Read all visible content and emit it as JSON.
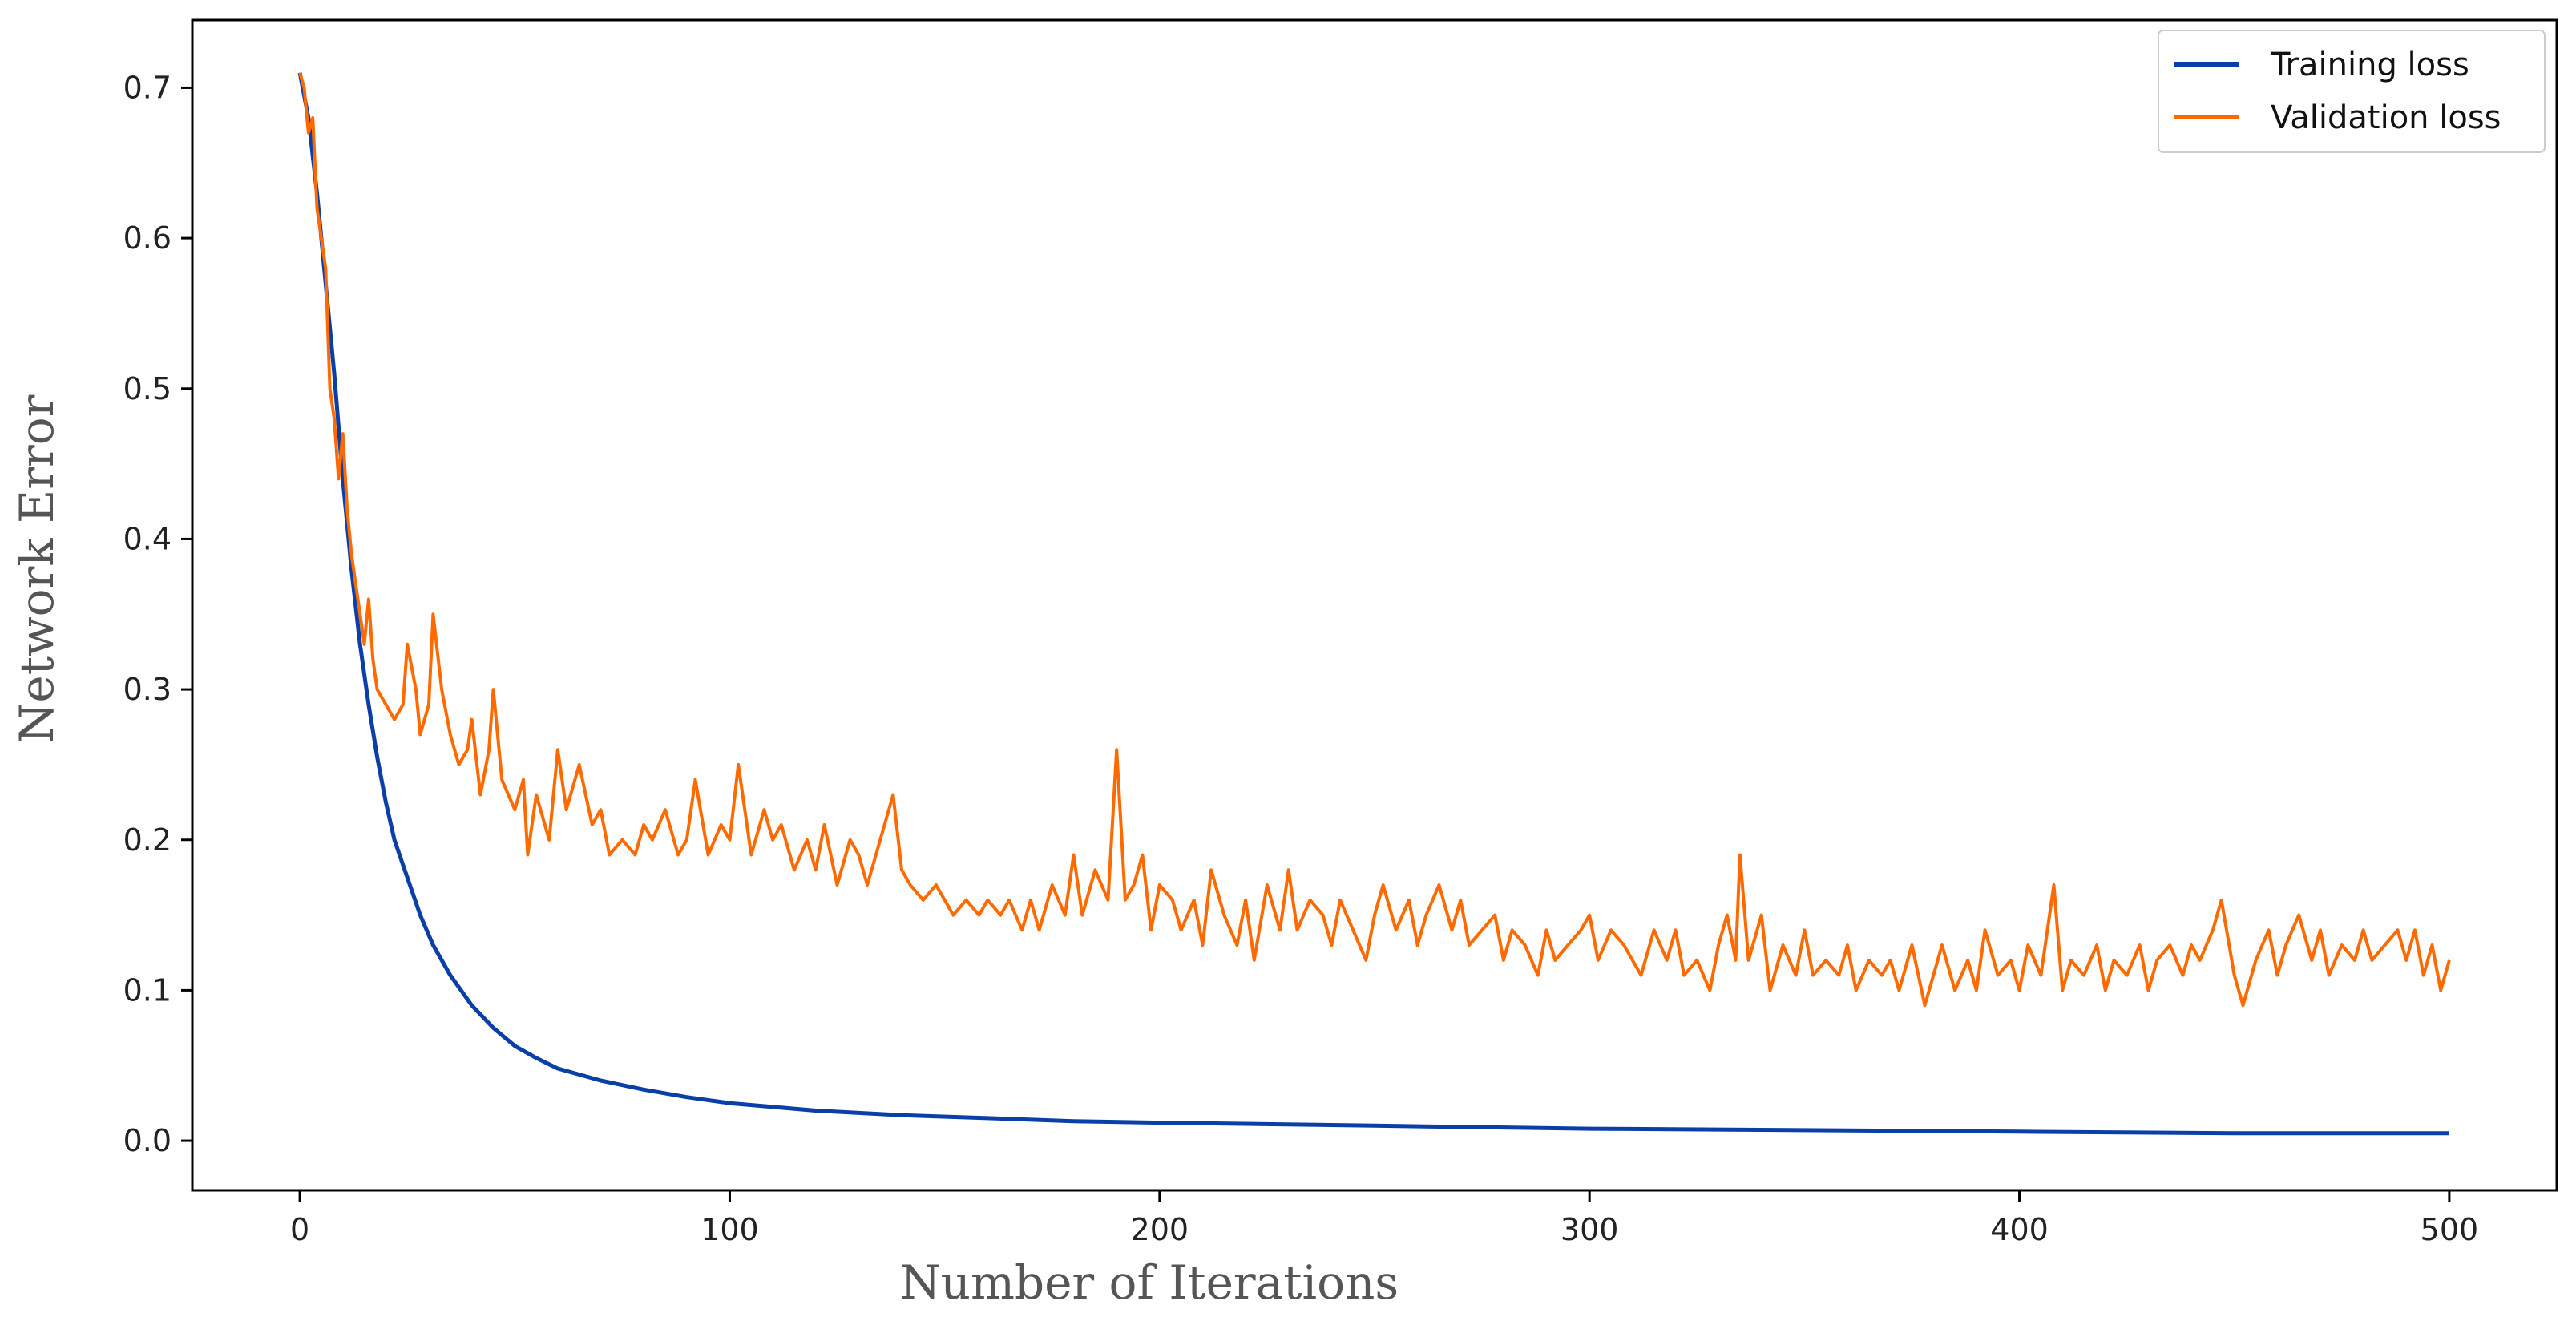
{
  "chart_data": {
    "type": "line",
    "xlabel": "Number of Iterations",
    "ylabel": "Network Error",
    "xlim": [
      -25,
      525
    ],
    "ylim": [
      -0.033,
      0.745
    ],
    "xticks": [
      0,
      100,
      200,
      300,
      400,
      500
    ],
    "yticks": [
      0.0,
      0.1,
      0.2,
      0.3,
      0.4,
      0.5,
      0.6,
      0.7
    ],
    "grid": false,
    "legend_position": "top-right",
    "series": [
      {
        "name": "Training loss",
        "color": "#0a3fa8",
        "points": [
          [
            0,
            0.71
          ],
          [
            2,
            0.68
          ],
          [
            4,
            0.63
          ],
          [
            6,
            0.57
          ],
          [
            8,
            0.51
          ],
          [
            10,
            0.44
          ],
          [
            12,
            0.38
          ],
          [
            14,
            0.33
          ],
          [
            16,
            0.29
          ],
          [
            18,
            0.255
          ],
          [
            20,
            0.225
          ],
          [
            22,
            0.2
          ],
          [
            25,
            0.175
          ],
          [
            28,
            0.15
          ],
          [
            31,
            0.13
          ],
          [
            35,
            0.11
          ],
          [
            40,
            0.09
          ],
          [
            45,
            0.075
          ],
          [
            50,
            0.063
          ],
          [
            55,
            0.055
          ],
          [
            60,
            0.048
          ],
          [
            70,
            0.04
          ],
          [
            80,
            0.034
          ],
          [
            90,
            0.029
          ],
          [
            100,
            0.025
          ],
          [
            120,
            0.02
          ],
          [
            140,
            0.017
          ],
          [
            160,
            0.015
          ],
          [
            180,
            0.013
          ],
          [
            200,
            0.012
          ],
          [
            250,
            0.01
          ],
          [
            300,
            0.008
          ],
          [
            350,
            0.007
          ],
          [
            400,
            0.006
          ],
          [
            450,
            0.005
          ],
          [
            500,
            0.005
          ]
        ]
      },
      {
        "name": "Validation loss",
        "color": "#ff6a00",
        "points": [
          [
            0,
            0.71
          ],
          [
            1,
            0.7
          ],
          [
            2,
            0.67
          ],
          [
            3,
            0.68
          ],
          [
            4,
            0.62
          ],
          [
            5,
            0.6
          ],
          [
            6,
            0.58
          ],
          [
            7,
            0.5
          ],
          [
            8,
            0.48
          ],
          [
            9,
            0.44
          ],
          [
            10,
            0.47
          ],
          [
            11,
            0.42
          ],
          [
            12,
            0.39
          ],
          [
            13,
            0.37
          ],
          [
            14,
            0.35
          ],
          [
            15,
            0.33
          ],
          [
            16,
            0.36
          ],
          [
            17,
            0.32
          ],
          [
            18,
            0.3
          ],
          [
            20,
            0.29
          ],
          [
            22,
            0.28
          ],
          [
            24,
            0.29
          ],
          [
            25,
            0.33
          ],
          [
            27,
            0.3
          ],
          [
            28,
            0.27
          ],
          [
            30,
            0.29
          ],
          [
            31,
            0.35
          ],
          [
            33,
            0.3
          ],
          [
            35,
            0.27
          ],
          [
            37,
            0.25
          ],
          [
            39,
            0.26
          ],
          [
            40,
            0.28
          ],
          [
            42,
            0.23
          ],
          [
            44,
            0.26
          ],
          [
            45,
            0.3
          ],
          [
            47,
            0.24
          ],
          [
            50,
            0.22
          ],
          [
            52,
            0.24
          ],
          [
            53,
            0.19
          ],
          [
            55,
            0.23
          ],
          [
            58,
            0.2
          ],
          [
            60,
            0.26
          ],
          [
            62,
            0.22
          ],
          [
            65,
            0.25
          ],
          [
            68,
            0.21
          ],
          [
            70,
            0.22
          ],
          [
            72,
            0.19
          ],
          [
            75,
            0.2
          ],
          [
            78,
            0.19
          ],
          [
            80,
            0.21
          ],
          [
            82,
            0.2
          ],
          [
            85,
            0.22
          ],
          [
            88,
            0.19
          ],
          [
            90,
            0.2
          ],
          [
            92,
            0.24
          ],
          [
            95,
            0.19
          ],
          [
            98,
            0.21
          ],
          [
            100,
            0.2
          ],
          [
            102,
            0.25
          ],
          [
            105,
            0.19
          ],
          [
            108,
            0.22
          ],
          [
            110,
            0.2
          ],
          [
            112,
            0.21
          ],
          [
            115,
            0.18
          ],
          [
            118,
            0.2
          ],
          [
            120,
            0.18
          ],
          [
            122,
            0.21
          ],
          [
            125,
            0.17
          ],
          [
            128,
            0.2
          ],
          [
            130,
            0.19
          ],
          [
            132,
            0.17
          ],
          [
            135,
            0.2
          ],
          [
            138,
            0.23
          ],
          [
            140,
            0.18
          ],
          [
            142,
            0.17
          ],
          [
            145,
            0.16
          ],
          [
            148,
            0.17
          ],
          [
            150,
            0.16
          ],
          [
            152,
            0.15
          ],
          [
            155,
            0.16
          ],
          [
            158,
            0.15
          ],
          [
            160,
            0.16
          ],
          [
            163,
            0.15
          ],
          [
            165,
            0.16
          ],
          [
            168,
            0.14
          ],
          [
            170,
            0.16
          ],
          [
            172,
            0.14
          ],
          [
            175,
            0.17
          ],
          [
            178,
            0.15
          ],
          [
            180,
            0.19
          ],
          [
            182,
            0.15
          ],
          [
            185,
            0.18
          ],
          [
            188,
            0.16
          ],
          [
            190,
            0.26
          ],
          [
            192,
            0.16
          ],
          [
            194,
            0.17
          ],
          [
            196,
            0.19
          ],
          [
            198,
            0.14
          ],
          [
            200,
            0.17
          ],
          [
            203,
            0.16
          ],
          [
            205,
            0.14
          ],
          [
            208,
            0.16
          ],
          [
            210,
            0.13
          ],
          [
            212,
            0.18
          ],
          [
            215,
            0.15
          ],
          [
            218,
            0.13
          ],
          [
            220,
            0.16
          ],
          [
            222,
            0.12
          ],
          [
            225,
            0.17
          ],
          [
            228,
            0.14
          ],
          [
            230,
            0.18
          ],
          [
            232,
            0.14
          ],
          [
            235,
            0.16
          ],
          [
            238,
            0.15
          ],
          [
            240,
            0.13
          ],
          [
            242,
            0.16
          ],
          [
            245,
            0.14
          ],
          [
            248,
            0.12
          ],
          [
            250,
            0.15
          ],
          [
            252,
            0.17
          ],
          [
            255,
            0.14
          ],
          [
            258,
            0.16
          ],
          [
            260,
            0.13
          ],
          [
            262,
            0.15
          ],
          [
            265,
            0.17
          ],
          [
            268,
            0.14
          ],
          [
            270,
            0.16
          ],
          [
            272,
            0.13
          ],
          [
            275,
            0.14
          ],
          [
            278,
            0.15
          ],
          [
            280,
            0.12
          ],
          [
            282,
            0.14
          ],
          [
            285,
            0.13
          ],
          [
            288,
            0.11
          ],
          [
            290,
            0.14
          ],
          [
            292,
            0.12
          ],
          [
            295,
            0.13
          ],
          [
            298,
            0.14
          ],
          [
            300,
            0.15
          ],
          [
            302,
            0.12
          ],
          [
            305,
            0.14
          ],
          [
            308,
            0.13
          ],
          [
            310,
            0.12
          ],
          [
            312,
            0.11
          ],
          [
            315,
            0.14
          ],
          [
            318,
            0.12
          ],
          [
            320,
            0.14
          ],
          [
            322,
            0.11
          ],
          [
            325,
            0.12
          ],
          [
            328,
            0.1
          ],
          [
            330,
            0.13
          ],
          [
            332,
            0.15
          ],
          [
            334,
            0.12
          ],
          [
            335,
            0.19
          ],
          [
            337,
            0.12
          ],
          [
            340,
            0.15
          ],
          [
            342,
            0.1
          ],
          [
            345,
            0.13
          ],
          [
            348,
            0.11
          ],
          [
            350,
            0.14
          ],
          [
            352,
            0.11
          ],
          [
            355,
            0.12
          ],
          [
            358,
            0.11
          ],
          [
            360,
            0.13
          ],
          [
            362,
            0.1
          ],
          [
            365,
            0.12
          ],
          [
            368,
            0.11
          ],
          [
            370,
            0.12
          ],
          [
            372,
            0.1
          ],
          [
            375,
            0.13
          ],
          [
            378,
            0.09
          ],
          [
            380,
            0.11
          ],
          [
            382,
            0.13
          ],
          [
            385,
            0.1
          ],
          [
            388,
            0.12
          ],
          [
            390,
            0.1
          ],
          [
            392,
            0.14
          ],
          [
            395,
            0.11
          ],
          [
            398,
            0.12
          ],
          [
            400,
            0.1
          ],
          [
            402,
            0.13
          ],
          [
            405,
            0.11
          ],
          [
            408,
            0.17
          ],
          [
            410,
            0.1
          ],
          [
            412,
            0.12
          ],
          [
            415,
            0.11
          ],
          [
            418,
            0.13
          ],
          [
            420,
            0.1
          ],
          [
            422,
            0.12
          ],
          [
            425,
            0.11
          ],
          [
            428,
            0.13
          ],
          [
            430,
            0.1
          ],
          [
            432,
            0.12
          ],
          [
            435,
            0.13
          ],
          [
            438,
            0.11
          ],
          [
            440,
            0.13
          ],
          [
            442,
            0.12
          ],
          [
            445,
            0.14
          ],
          [
            447,
            0.16
          ],
          [
            450,
            0.11
          ],
          [
            452,
            0.09
          ],
          [
            455,
            0.12
          ],
          [
            458,
            0.14
          ],
          [
            460,
            0.11
          ],
          [
            462,
            0.13
          ],
          [
            465,
            0.15
          ],
          [
            468,
            0.12
          ],
          [
            470,
            0.14
          ],
          [
            472,
            0.11
          ],
          [
            475,
            0.13
          ],
          [
            478,
            0.12
          ],
          [
            480,
            0.14
          ],
          [
            482,
            0.12
          ],
          [
            485,
            0.13
          ],
          [
            488,
            0.14
          ],
          [
            490,
            0.12
          ],
          [
            492,
            0.14
          ],
          [
            494,
            0.11
          ],
          [
            496,
            0.13
          ],
          [
            498,
            0.1
          ],
          [
            500,
            0.12
          ]
        ]
      }
    ]
  }
}
